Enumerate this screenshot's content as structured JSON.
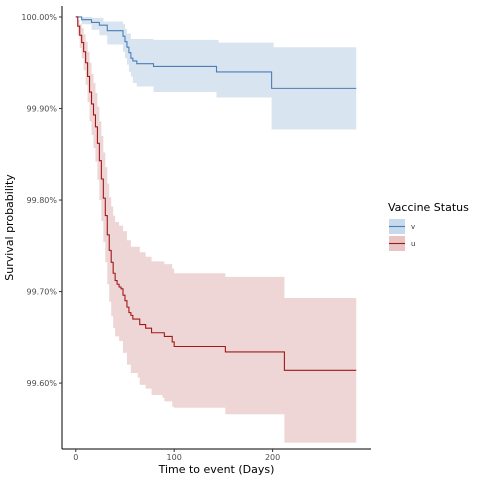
{
  "chart_data": {
    "type": "line",
    "subtype": "kaplan-meier step survival curve with confidence bands",
    "title": "",
    "xlabel": "Time to event (Days)",
    "ylabel": "Survival probability",
    "xlim": [
      -14,
      300
    ],
    "ylim": [
      99.528,
      100.012
    ],
    "x_ticks": [
      0,
      100,
      200
    ],
    "x_tick_labels": [
      "0",
      "100",
      "200"
    ],
    "y_ticks": [
      99.6,
      99.7,
      99.8,
      99.9,
      100.0
    ],
    "y_tick_labels": [
      "99.60%",
      "99.70%",
      "99.80%",
      "99.90%",
      "100.00%"
    ],
    "grid": false,
    "legend": {
      "title": "Vaccine Status",
      "position": "right",
      "entries": [
        "v",
        "u"
      ]
    },
    "series": [
      {
        "name": "v",
        "color": "#4a7eb8",
        "band_color": "#c7d9ea",
        "points": [
          [
            0,
            100.0
          ],
          [
            6,
            99.997
          ],
          [
            14,
            99.997
          ],
          [
            16,
            99.994
          ],
          [
            22,
            99.994
          ],
          [
            24,
            99.991
          ],
          [
            30,
            99.991
          ],
          [
            32,
            99.985
          ],
          [
            46,
            99.985
          ],
          [
            48,
            99.979
          ],
          [
            50,
            99.973
          ],
          [
            52,
            99.967
          ],
          [
            54,
            99.961
          ],
          [
            56,
            99.955
          ],
          [
            58,
            99.952
          ],
          [
            62,
            99.949
          ],
          [
            77,
            99.949
          ],
          [
            79,
            99.946
          ],
          [
            141,
            99.946
          ],
          [
            143,
            99.94
          ],
          [
            197,
            99.94
          ],
          [
            199,
            99.922
          ],
          [
            285,
            99.922
          ]
        ],
        "upper": [
          [
            0,
            100.0
          ],
          [
            14,
            100.0
          ],
          [
            16,
            99.999
          ],
          [
            24,
            99.999
          ],
          [
            28,
            99.995
          ],
          [
            46,
            99.995
          ],
          [
            48,
            99.992
          ],
          [
            50,
            99.987
          ],
          [
            52,
            99.982
          ],
          [
            56,
            99.976
          ],
          [
            77,
            99.976
          ],
          [
            79,
            99.975
          ],
          [
            143,
            99.975
          ],
          [
            145,
            99.972
          ],
          [
            199,
            99.972
          ],
          [
            201,
            99.967
          ],
          [
            285,
            99.967
          ]
        ],
        "lower": [
          [
            0,
            100.0
          ],
          [
            6,
            99.992
          ],
          [
            16,
            99.986
          ],
          [
            24,
            99.98
          ],
          [
            32,
            99.97
          ],
          [
            46,
            99.97
          ],
          [
            48,
            99.962
          ],
          [
            50,
            99.955
          ],
          [
            52,
            99.948
          ],
          [
            54,
            99.94
          ],
          [
            56,
            99.935
          ],
          [
            58,
            99.928
          ],
          [
            62,
            99.924
          ],
          [
            77,
            99.924
          ],
          [
            79,
            99.918
          ],
          [
            141,
            99.918
          ],
          [
            143,
            99.912
          ],
          [
            197,
            99.912
          ],
          [
            199,
            99.877
          ],
          [
            285,
            99.877
          ]
        ]
      },
      {
        "name": "u",
        "color": "#a01818",
        "band_color": "#e8c4c4",
        "points": [
          [
            0,
            100.0
          ],
          [
            2,
            99.99
          ],
          [
            4,
            99.98
          ],
          [
            6,
            99.972
          ],
          [
            8,
            99.962
          ],
          [
            10,
            99.95
          ],
          [
            12,
            99.935
          ],
          [
            14,
            99.918
          ],
          [
            16,
            99.905
          ],
          [
            18,
            99.893
          ],
          [
            20,
            99.88
          ],
          [
            22,
            99.862
          ],
          [
            24,
            99.843
          ],
          [
            26,
            99.823
          ],
          [
            28,
            99.802
          ],
          [
            30,
            99.783
          ],
          [
            32,
            99.762
          ],
          [
            34,
            99.745
          ],
          [
            36,
            99.732
          ],
          [
            38,
            99.72
          ],
          [
            40,
            99.712
          ],
          [
            42,
            99.708
          ],
          [
            44,
            99.705
          ],
          [
            46,
            99.703
          ],
          [
            48,
            99.696
          ],
          [
            50,
            99.69
          ],
          [
            52,
            99.683
          ],
          [
            54,
            99.677
          ],
          [
            56,
            99.674
          ],
          [
            58,
            99.67
          ],
          [
            63,
            99.67
          ],
          [
            65,
            99.664
          ],
          [
            69,
            99.664
          ],
          [
            71,
            99.66
          ],
          [
            75,
            99.66
          ],
          [
            77,
            99.655
          ],
          [
            88,
            99.655
          ],
          [
            90,
            99.651
          ],
          [
            96,
            99.651
          ],
          [
            98,
            99.645
          ],
          [
            100,
            99.64
          ],
          [
            150,
            99.64
          ],
          [
            152,
            99.634
          ],
          [
            210,
            99.634
          ],
          [
            212,
            99.614
          ],
          [
            285,
            99.614
          ]
        ],
        "upper": [
          [
            0,
            100.0
          ],
          [
            2,
            99.997
          ],
          [
            4,
            99.992
          ],
          [
            6,
            99.988
          ],
          [
            8,
            99.981
          ],
          [
            10,
            99.973
          ],
          [
            12,
            99.962
          ],
          [
            14,
            99.95
          ],
          [
            16,
            99.938
          ],
          [
            18,
            99.928
          ],
          [
            20,
            99.917
          ],
          [
            22,
            99.902
          ],
          [
            24,
            99.886
          ],
          [
            26,
            99.87
          ],
          [
            28,
            99.852
          ],
          [
            30,
            99.836
          ],
          [
            32,
            99.818
          ],
          [
            34,
            99.803
          ],
          [
            36,
            99.793
          ],
          [
            38,
            99.783
          ],
          [
            40,
            99.776
          ],
          [
            44,
            99.772
          ],
          [
            48,
            99.766
          ],
          [
            52,
            99.756
          ],
          [
            56,
            99.749
          ],
          [
            63,
            99.749
          ],
          [
            65,
            99.743
          ],
          [
            71,
            99.738
          ],
          [
            77,
            99.733
          ],
          [
            88,
            99.733
          ],
          [
            90,
            99.73
          ],
          [
            98,
            99.725
          ],
          [
            100,
            99.72
          ],
          [
            150,
            99.72
          ],
          [
            152,
            99.716
          ],
          [
            210,
            99.716
          ],
          [
            212,
            99.693
          ],
          [
            285,
            99.693
          ]
        ],
        "lower": [
          [
            0,
            100.0
          ],
          [
            2,
            99.98
          ],
          [
            4,
            99.966
          ],
          [
            6,
            99.955
          ],
          [
            8,
            99.942
          ],
          [
            10,
            99.926
          ],
          [
            12,
            99.907
          ],
          [
            14,
            99.886
          ],
          [
            16,
            99.871
          ],
          [
            18,
            99.857
          ],
          [
            20,
            99.842
          ],
          [
            22,
            99.822
          ],
          [
            24,
            99.8
          ],
          [
            26,
            99.777
          ],
          [
            28,
            99.754
          ],
          [
            30,
            99.732
          ],
          [
            32,
            99.708
          ],
          [
            34,
            99.689
          ],
          [
            36,
            99.673
          ],
          [
            38,
            99.66
          ],
          [
            40,
            99.651
          ],
          [
            44,
            99.646
          ],
          [
            48,
            99.633
          ],
          [
            52,
            99.62
          ],
          [
            56,
            99.611
          ],
          [
            63,
            99.606
          ],
          [
            65,
            99.598
          ],
          [
            71,
            99.594
          ],
          [
            77,
            99.587
          ],
          [
            88,
            99.584
          ],
          [
            90,
            99.58
          ],
          [
            98,
            99.574
          ],
          [
            100,
            99.573
          ],
          [
            150,
            99.573
          ],
          [
            152,
            99.566
          ],
          [
            210,
            99.566
          ],
          [
            212,
            99.535
          ],
          [
            285,
            99.535
          ]
        ]
      }
    ]
  }
}
